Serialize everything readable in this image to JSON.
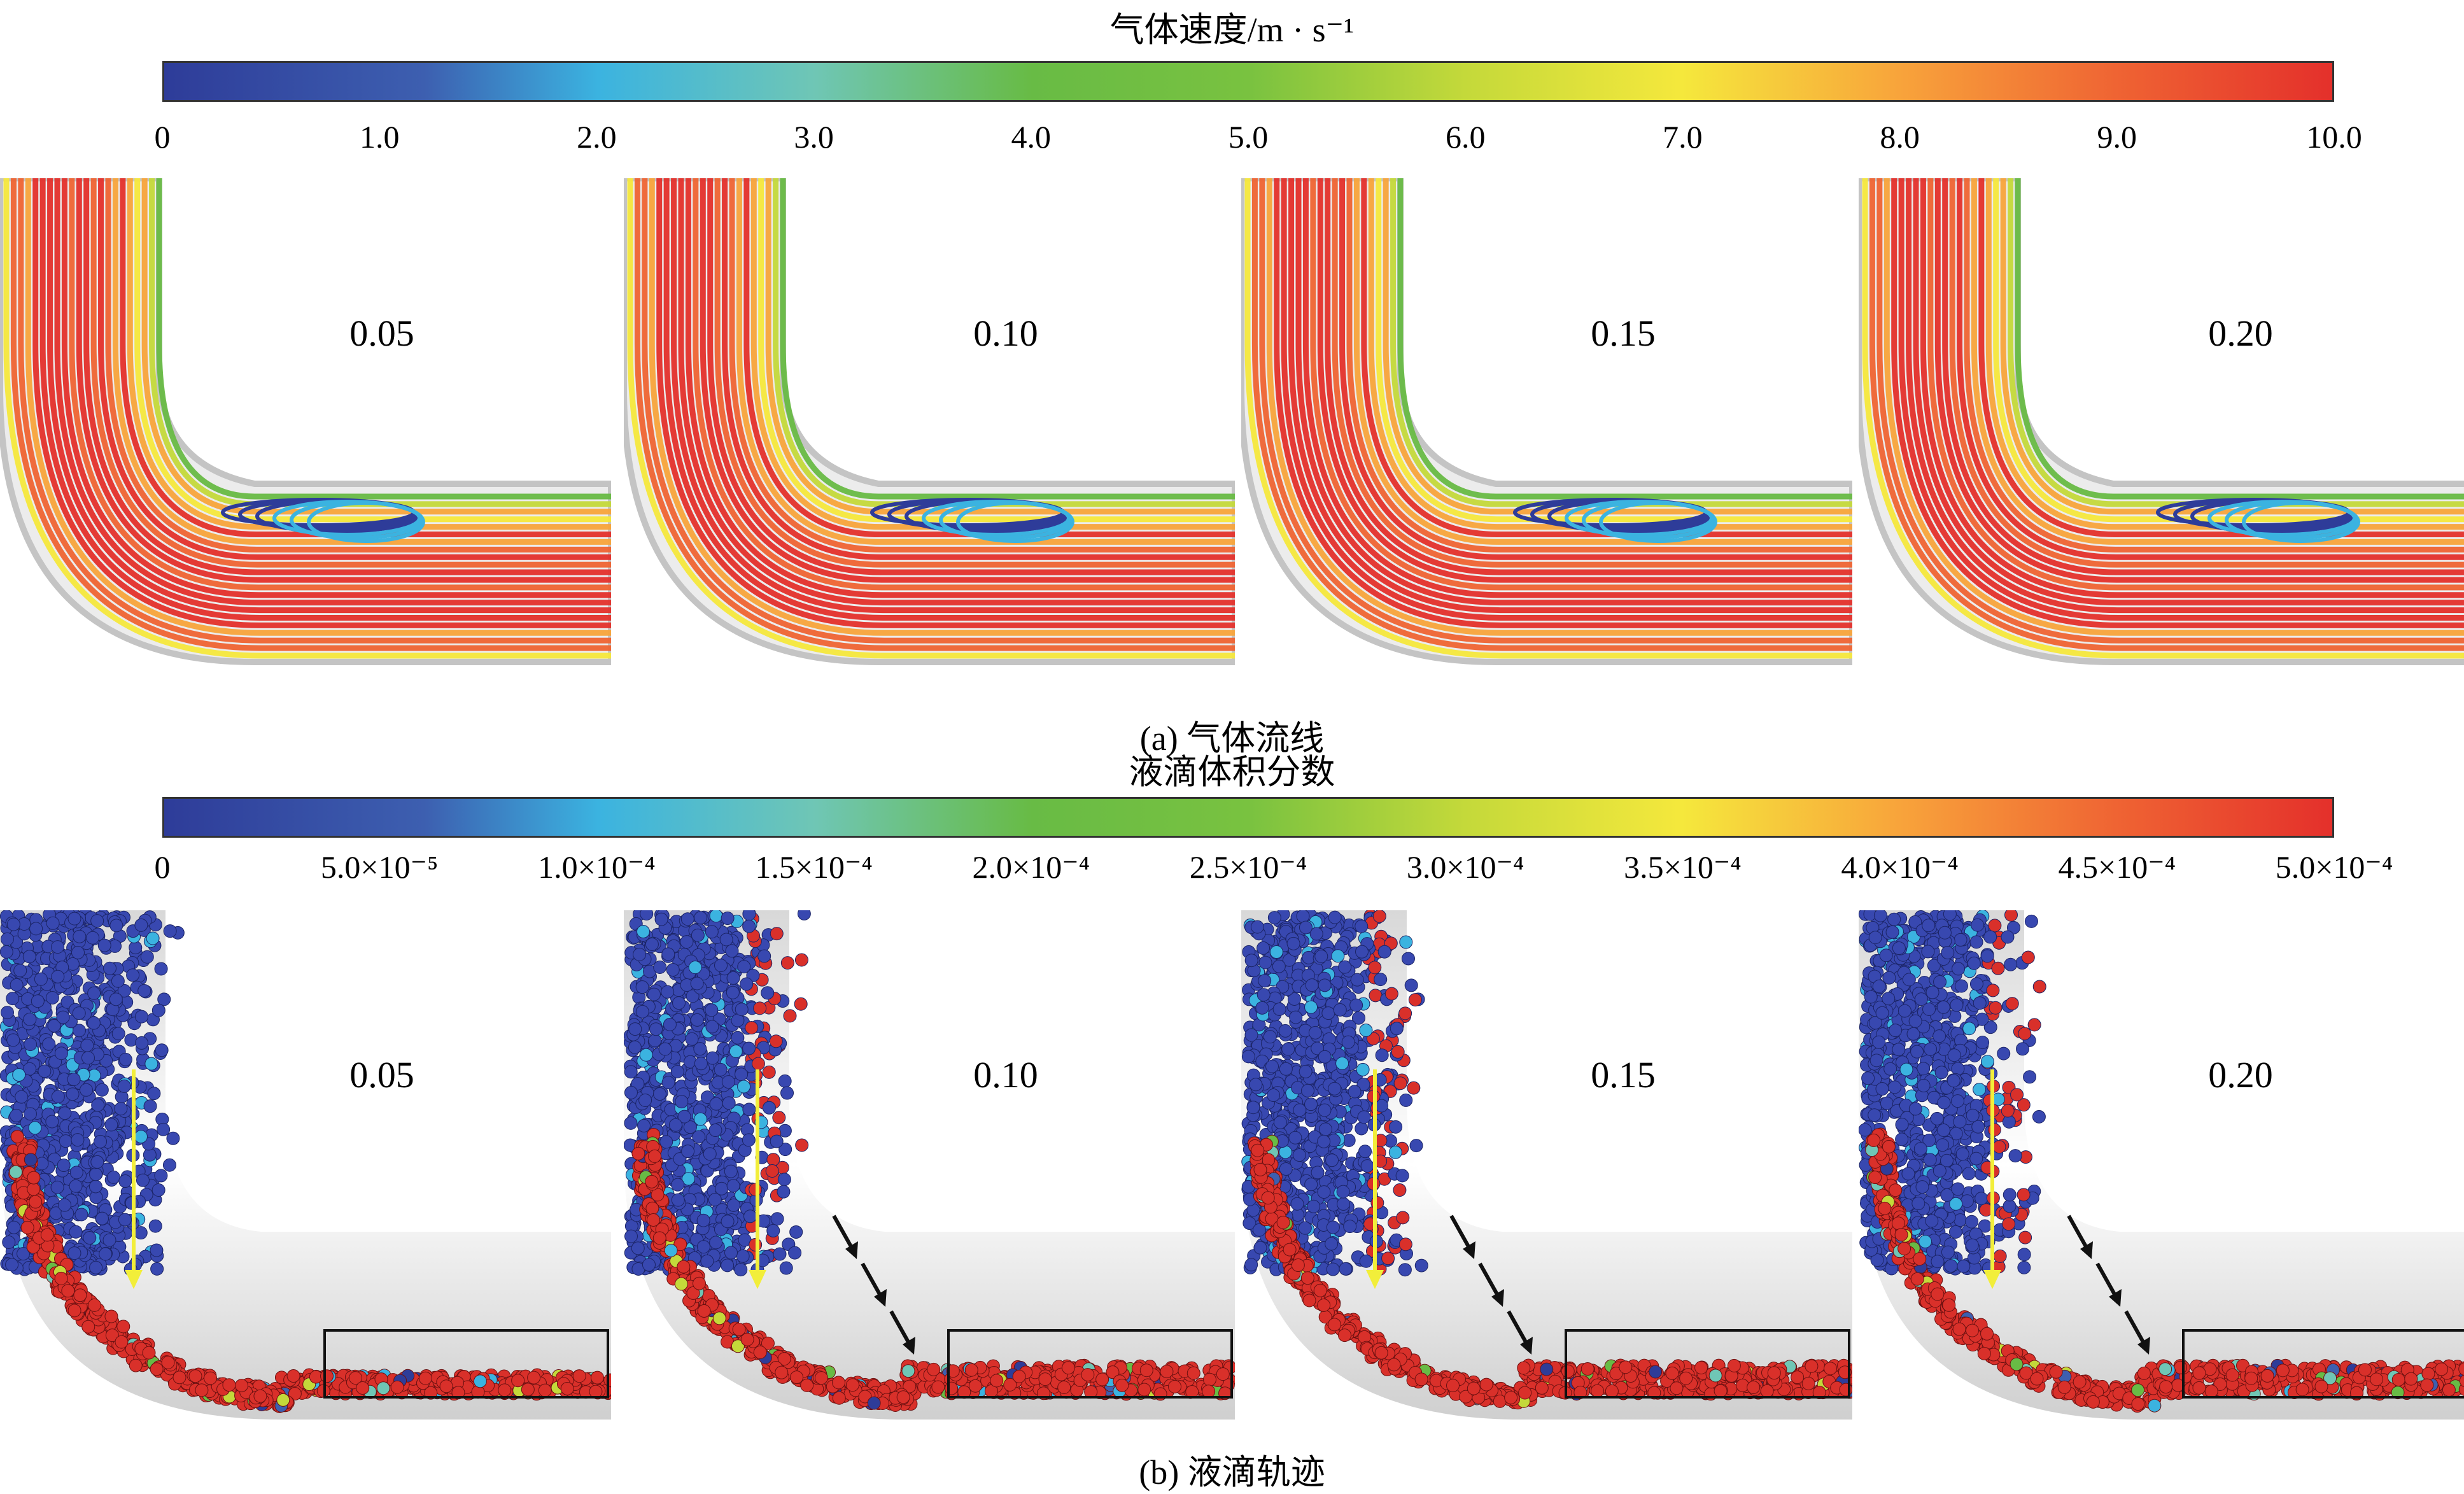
{
  "colors": {
    "pipe_wall": "#c4c4c4",
    "pipe_fill": "#ececec",
    "droplet_blue": "#3848b0",
    "droplet_red": "#d9302a",
    "arrow_yellow": "#f2ee3a",
    "arrow_black": "#111111"
  },
  "figure_a": {
    "colorbar_title": "气体速度/m · s⁻¹",
    "ticks": [
      "0",
      "1.0",
      "2.0",
      "3.0",
      "4.0",
      "5.0",
      "6.0",
      "7.0",
      "8.0",
      "9.0",
      "10.0"
    ],
    "panels": [
      "0.05",
      "0.10",
      "0.15",
      "0.20"
    ],
    "caption": "(a) 气体流线"
  },
  "figure_b": {
    "colorbar_title": "液滴体积分数",
    "ticks": [
      "0",
      "5.0×10⁻⁵",
      "1.0×10⁻⁴",
      "1.5×10⁻⁴",
      "2.0×10⁻⁴",
      "2.5×10⁻⁴",
      "3.0×10⁻⁴",
      "3.5×10⁻⁴",
      "4.0×10⁻⁴",
      "4.5×10⁻⁴",
      "5.0×10⁻⁴"
    ],
    "panels": [
      "0.05",
      "0.10",
      "0.15",
      "0.20"
    ],
    "caption": "(b) 液滴轨迹"
  }
}
